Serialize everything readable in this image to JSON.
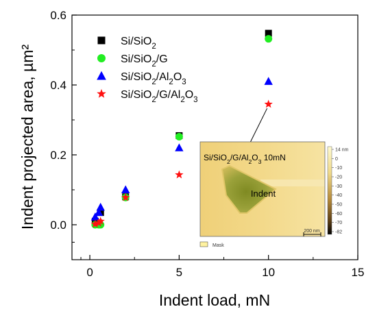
{
  "chart_data": {
    "type": "scatter",
    "xlabel": "Indent load, mN",
    "ylabel": "Indent projected area, µm²",
    "xlim": [
      -1,
      15
    ],
    "ylim": [
      -0.1,
      0.6
    ],
    "xticks": [
      0,
      5,
      10,
      15
    ],
    "yticks": [
      0.0,
      0.2,
      0.4,
      0.6
    ],
    "x_tick_labels": [
      "0",
      "5",
      "10",
      "15"
    ],
    "y_tick_labels": [
      "0.0",
      "0.2",
      "0.4",
      "0.6"
    ],
    "grid": false,
    "legend_position": "top-left",
    "series": [
      {
        "name": "Si/SiO2",
        "label_parts": [
          {
            "t": "Si/SiO"
          },
          {
            "t": "2",
            "sub": true
          }
        ],
        "marker": "square",
        "color": "#000000",
        "points": [
          [
            0.3,
            0.01
          ],
          [
            0.5,
            0.005
          ],
          [
            0.6,
            0.035
          ],
          [
            2.0,
            0.08
          ],
          [
            5.0,
            0.255
          ],
          [
            10.0,
            0.548
          ]
        ]
      },
      {
        "name": "Si/SiO2/G",
        "label_parts": [
          {
            "t": "Si/SiO"
          },
          {
            "t": "2",
            "sub": true
          },
          {
            "t": "/G"
          }
        ],
        "marker": "circle",
        "color": "#22ee22",
        "points": [
          [
            0.3,
            0.0
          ],
          [
            0.5,
            0.0
          ],
          [
            0.6,
            0.0
          ],
          [
            2.0,
            0.078
          ],
          [
            5.0,
            0.252
          ],
          [
            10.0,
            0.532
          ]
        ]
      },
      {
        "name": "Si/SiO2/Al2O3",
        "label_parts": [
          {
            "t": "Si/SiO"
          },
          {
            "t": "2",
            "sub": true
          },
          {
            "t": "/Al"
          },
          {
            "t": "2",
            "sub": true
          },
          {
            "t": "O"
          },
          {
            "t": "3",
            "sub": true
          }
        ],
        "marker": "triangle",
        "color": "#0000ff",
        "points": [
          [
            0.3,
            0.022
          ],
          [
            0.5,
            0.035
          ],
          [
            0.6,
            0.05
          ],
          [
            2.0,
            0.1
          ],
          [
            5.0,
            0.22
          ],
          [
            10.0,
            0.41
          ]
        ]
      },
      {
        "name": "Si/SiO2/G/Al2O3",
        "label_parts": [
          {
            "t": "Si/SiO"
          },
          {
            "t": "2",
            "sub": true
          },
          {
            "t": "/G/Al"
          },
          {
            "t": "2",
            "sub": true
          },
          {
            "t": "O"
          },
          {
            "t": "3",
            "sub": true
          }
        ],
        "marker": "star",
        "color": "#ff1111",
        "points": [
          [
            0.3,
            0.002
          ],
          [
            0.5,
            0.005
          ],
          [
            0.6,
            0.01
          ],
          [
            2.0,
            0.078
          ],
          [
            5.0,
            0.143
          ],
          [
            10.0,
            0.345
          ]
        ]
      }
    ],
    "inset": {
      "title_parts": [
        {
          "t": "Si/SiO"
        },
        {
          "t": "2",
          "sub": true
        },
        {
          "t": "/G/Al"
        },
        {
          "t": "2",
          "sub": true
        },
        {
          "t": "O"
        },
        {
          "t": "3",
          "sub": true
        },
        {
          "t": "     10mN"
        }
      ],
      "indent_label": "Indent",
      "scale_bar_label": "200 nm",
      "mask_label": "Mask",
      "colorbar_ticks": [
        "14 nm",
        "0",
        "-10",
        "-20",
        "-30",
        "-40",
        "-50",
        "-60",
        "-70",
        "-82"
      ],
      "arrow_from_point": [
        10.0,
        0.345
      ]
    }
  }
}
